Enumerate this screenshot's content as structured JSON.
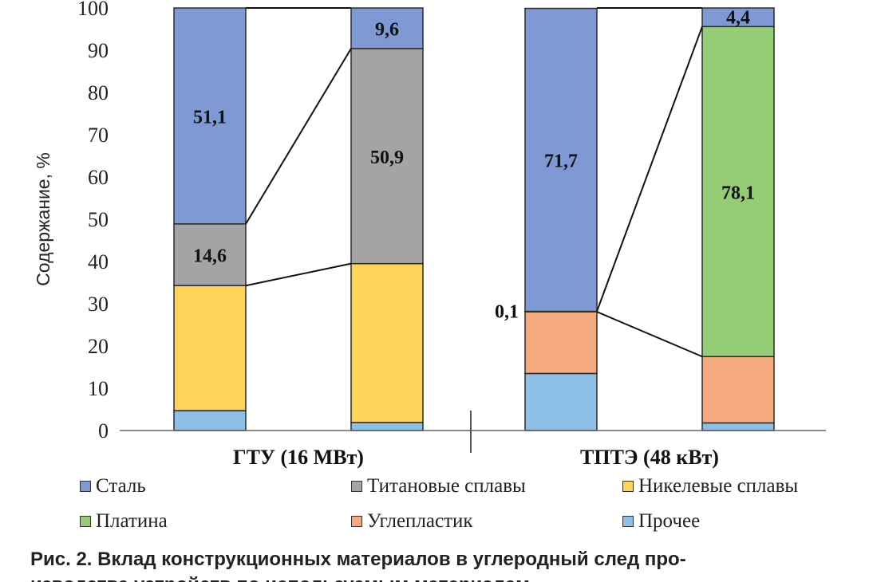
{
  "chart_data": {
    "type": "bar",
    "stacked": true,
    "ylabel": "Содержание, %",
    "ylim": [
      0,
      100
    ],
    "yticks": [
      0,
      10,
      20,
      30,
      40,
      50,
      60,
      70,
      80,
      90,
      100
    ],
    "grid": false,
    "groups": [
      {
        "label": "ГТУ (16 МВт)",
        "bars": 2
      },
      {
        "label": "ТПТЭ (48 кВт)",
        "bars": 2
      }
    ],
    "series": [
      {
        "name": "Прочее",
        "color": "#8ebfe6",
        "values": [
          4.7,
          1.9,
          13.5,
          1.8
        ]
      },
      {
        "name": "Углепластик",
        "color": "#f4aa7e",
        "values": [
          0,
          0,
          14.6,
          15.7
        ]
      },
      {
        "name": "Никелевые сплавы",
        "color": "#fdd35a",
        "values": [
          29.6,
          37.6,
          0,
          0
        ]
      },
      {
        "name": "Титановые сплавы",
        "color": "#a4a4a4",
        "values": [
          14.6,
          50.9,
          0,
          0
        ]
      },
      {
        "name": "Платина",
        "color": "#95cc76",
        "values": [
          0,
          0,
          0.1,
          78.1
        ]
      },
      {
        "name": "Сталь",
        "color": "#7f99d4",
        "values": [
          51.1,
          9.6,
          71.7,
          4.4
        ]
      }
    ],
    "data_labels": [
      {
        "bar": 0,
        "series": "Сталь",
        "text": "51,1"
      },
      {
        "bar": 0,
        "series": "Титановые сплавы",
        "text": "14,6"
      },
      {
        "bar": 1,
        "series": "Титановые сплавы",
        "text": "50,9"
      },
      {
        "bar": 1,
        "series": "Сталь",
        "text": "9,6"
      },
      {
        "bar": 2,
        "series": "Сталь",
        "text": "71,7"
      },
      {
        "bar": 2,
        "series": "Платина",
        "text": "0,1"
      },
      {
        "bar": 3,
        "series": "Платина",
        "text": "78,1"
      },
      {
        "bar": 3,
        "series": "Сталь",
        "text": "4,4"
      }
    ],
    "legend": {
      "placement": "bottom",
      "entries": [
        "Сталь",
        "Титановые сплавы",
        "Никелевые сплавы",
        "Платина",
        "Углепластик",
        "Прочее"
      ]
    }
  },
  "caption": {
    "line1": "Рис. 2. Вклад конструкционных материалов в углеродный след про-",
    "line2": "изводства устройств по используемым материалам"
  }
}
